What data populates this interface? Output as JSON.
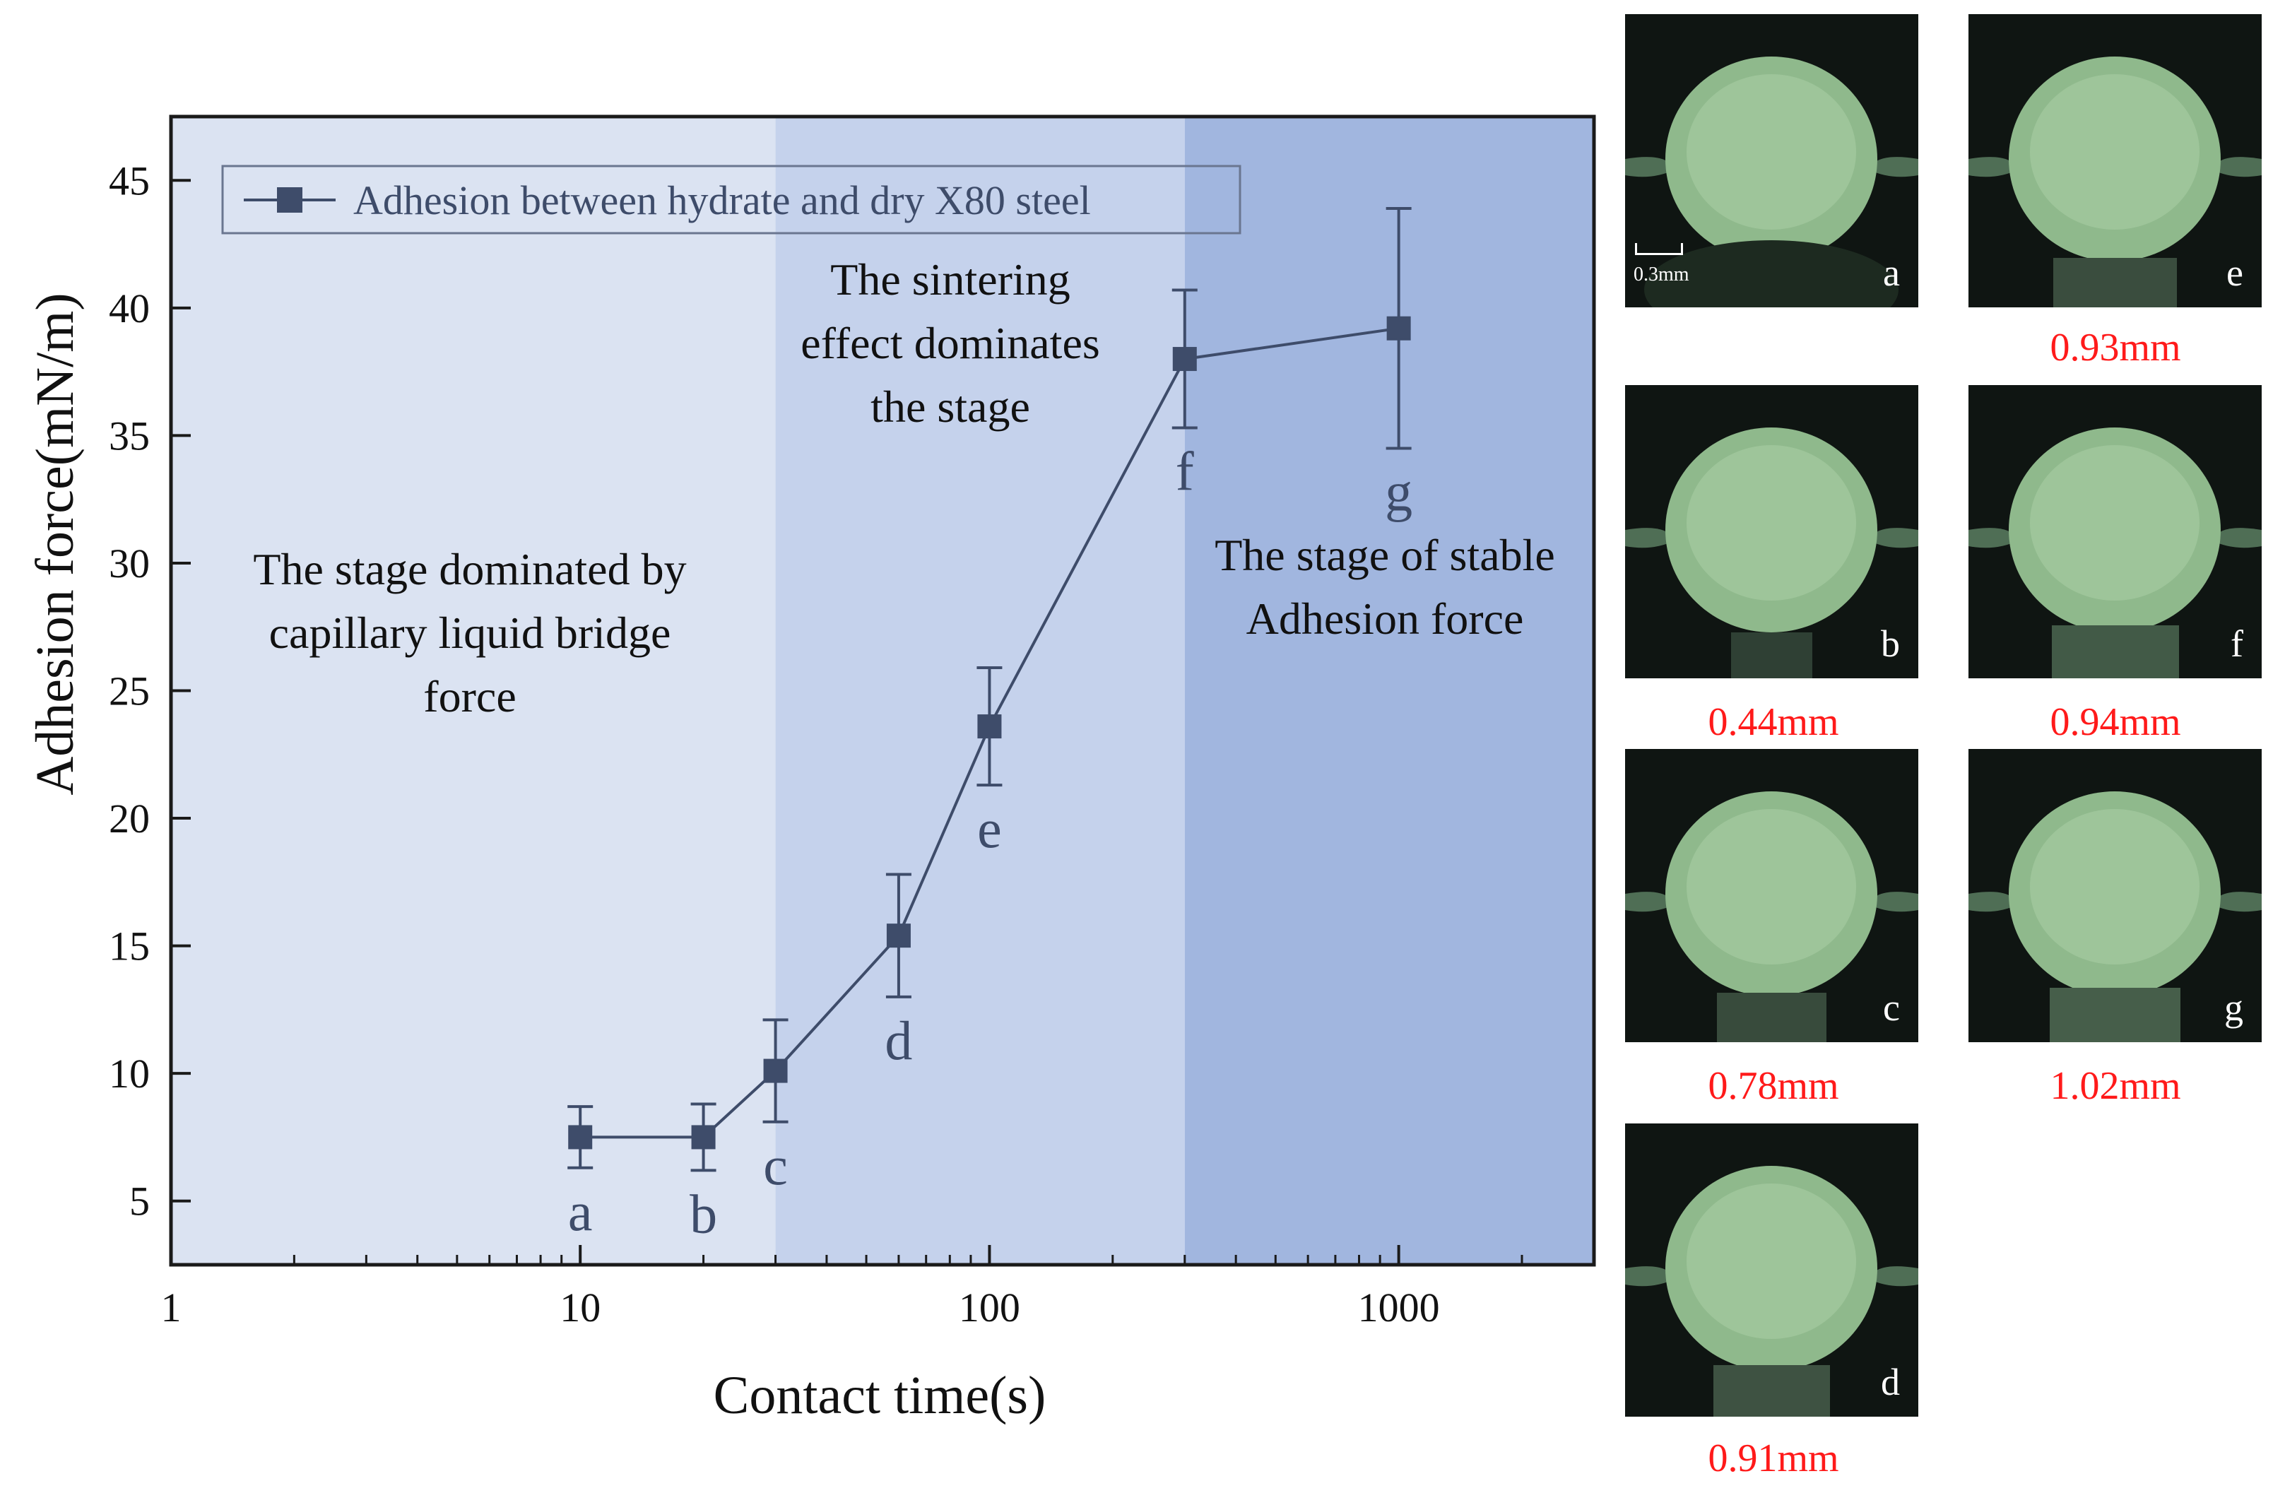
{
  "chart_data": {
    "type": "line",
    "x_scale": "log",
    "xlabel": "Contact time(s)",
    "ylabel": "Adhesion force(mN/m)",
    "xlim": [
      1,
      3000
    ],
    "ylim": [
      2.5,
      47.5
    ],
    "x_ticks": [
      1,
      10,
      100,
      1000
    ],
    "x_tick_labels": [
      "1",
      "10",
      "100",
      "1000"
    ],
    "y_ticks": [
      5,
      10,
      15,
      20,
      25,
      30,
      35,
      40,
      45
    ],
    "y_tick_labels": [
      "5",
      "10",
      "15",
      "20",
      "25",
      "30",
      "35",
      "40",
      "45"
    ],
    "series": [
      {
        "name": "Adhesion between hydrate and dry X80 steel",
        "color": "#3e4c6a",
        "x": [
          10,
          20,
          30,
          60,
          100,
          300,
          1000
        ],
        "y": [
          7.5,
          7.5,
          10.1,
          15.4,
          23.6,
          38.0,
          39.2
        ],
        "err_lo": [
          1.2,
          1.3,
          2.0,
          2.4,
          2.3,
          2.7,
          4.7
        ],
        "err_hi": [
          1.2,
          1.3,
          2.0,
          2.4,
          2.3,
          2.7,
          4.7
        ],
        "point_labels": [
          "a",
          "b",
          "c",
          "d",
          "e",
          "f",
          "g"
        ]
      }
    ],
    "regions": [
      {
        "x_from": 1,
        "x_to": 30,
        "color": "#dbe3f2",
        "label_lines": [
          "The stage dominated by",
          "capillary liquid bridge",
          "force"
        ]
      },
      {
        "x_from": 30,
        "x_to": 300,
        "color": "#c5d2ec",
        "label_lines": [
          "The sintering",
          "effect dominates",
          "the stage"
        ]
      },
      {
        "x_from": 300,
        "x_to": 3000,
        "color": "#a1b6df",
        "label_lines": [
          "The stage of stable",
          "Adhesion force"
        ]
      }
    ],
    "legend_position": "top-left"
  },
  "photos": [
    {
      "letter": "a",
      "scale_label": "0.3mm"
    },
    {
      "letter": "b",
      "measurement": "0.44mm"
    },
    {
      "letter": "c",
      "measurement": "0.78mm"
    },
    {
      "letter": "d",
      "measurement": "0.91mm"
    },
    {
      "letter": "e",
      "measurement": "0.93mm"
    },
    {
      "letter": "f",
      "measurement": "0.94mm"
    },
    {
      "letter": "g",
      "measurement": "1.02mm"
    }
  ]
}
